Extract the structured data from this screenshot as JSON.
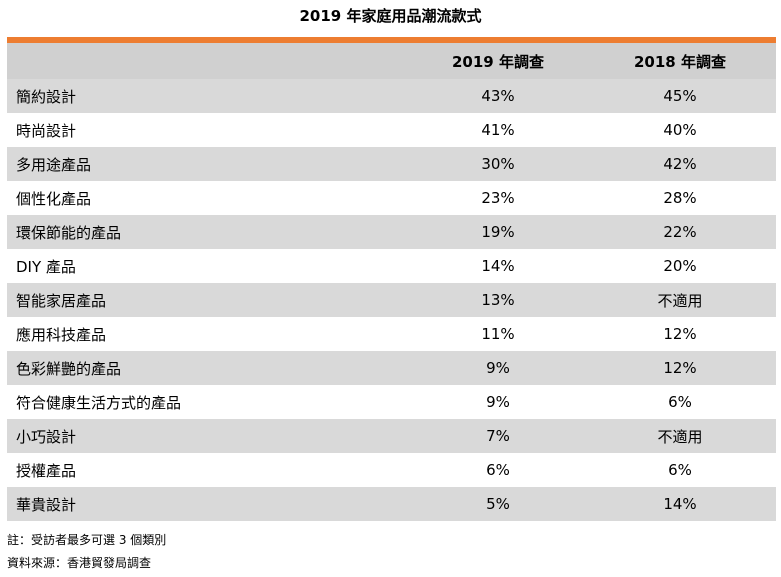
{
  "chart_data": {
    "type": "table",
    "title": "2019 年家庭用品潮流款式",
    "columns": [
      "",
      "2019 年調查",
      "2018 年調查"
    ],
    "rows": [
      {
        "label": "簡約設計",
        "values": [
          "43%",
          "45%"
        ]
      },
      {
        "label": "時尚設計",
        "values": [
          "41%",
          "40%"
        ]
      },
      {
        "label": "多用途產品",
        "values": [
          "30%",
          "42%"
        ]
      },
      {
        "label": "個性化產品",
        "values": [
          "23%",
          "28%"
        ]
      },
      {
        "label": "環保節能的產品",
        "values": [
          "19%",
          "22%"
        ]
      },
      {
        "label": "DIY 產品",
        "values": [
          "14%",
          "20%"
        ]
      },
      {
        "label": "智能家居產品",
        "values": [
          "13%",
          "不適用"
        ]
      },
      {
        "label": "應用科技產品",
        "values": [
          "11%",
          "12%"
        ]
      },
      {
        "label": "色彩鮮艷的產品",
        "values": [
          "9%",
          "12%"
        ]
      },
      {
        "label": "符合健康生活方式的產品",
        "values": [
          "9%",
          "6%"
        ]
      },
      {
        "label": "小巧設計",
        "values": [
          "7%",
          "不適用"
        ]
      },
      {
        "label": "授權產品",
        "values": [
          "6%",
          "6%"
        ]
      },
      {
        "label": "華貴設計",
        "values": [
          "5%",
          "14%"
        ]
      }
    ]
  },
  "notes": {
    "note": "註：受訪者最多可選 3 個類別",
    "source": "資料來源：香港貿發局調查"
  },
  "colors": {
    "accent": "#ED7D31",
    "header_bg": "#D0D0D0",
    "stripe_bg": "#D9D9D9",
    "plain_bg": "#FFFFFF"
  }
}
